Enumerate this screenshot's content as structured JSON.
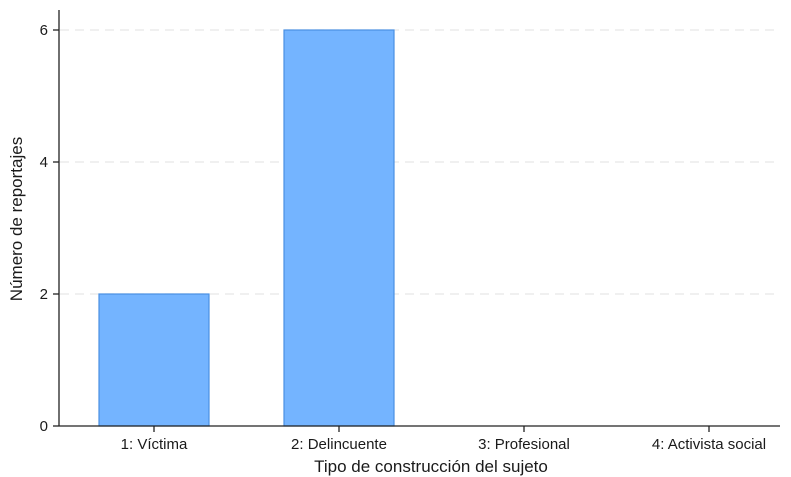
{
  "chart_data": {
    "type": "bar",
    "categories": [
      "1: Víctima",
      "2: Delincuente",
      "3: Profesional",
      "4: Activista social"
    ],
    "values": [
      2,
      6,
      0,
      0
    ],
    "title": "",
    "xlabel": "Tipo de construcción del sujeto",
    "ylabel": "Número de reportajes",
    "ylim": [
      0,
      6
    ],
    "yticks": [
      0,
      2,
      4,
      6
    ],
    "grid": true,
    "legend": "none",
    "colors": {
      "bar_fill": "#74b4ff",
      "bar_stroke": "#4a90e2",
      "grid": "#e6e6e6",
      "axis": "#222222"
    }
  }
}
